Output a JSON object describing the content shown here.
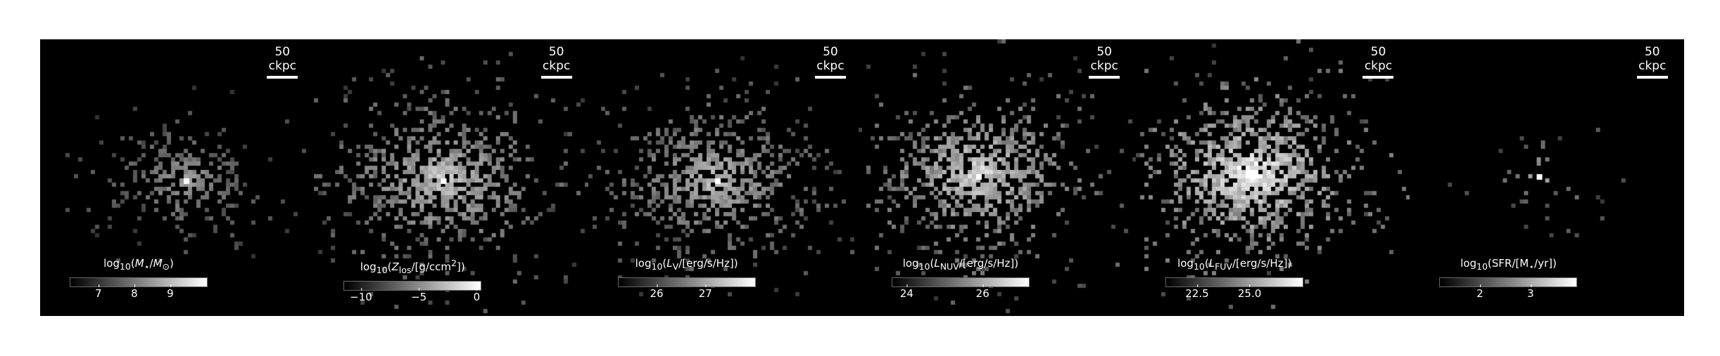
{
  "panels": [
    {
      "scale_label": "50 ckpc",
      "colorbar_html": "log<sub>10</sub>(<i>M</i><sub>⋆</sub>/<i>M</i><sub>⊙</sub>)",
      "colorbar_text": "log10(M⋆/M⊙)",
      "range": [
        6.2,
        10.0
      ],
      "ticks": [
        {
          "label": "7",
          "value": 7
        },
        {
          "label": "8",
          "value": 8
        },
        {
          "label": "9",
          "value": 9
        }
      ]
    },
    {
      "scale_label": "50 ckpc",
      "colorbar_html": "log<sub>10</sub>(<i>Z</i><sub>los</sub>/[g/ccm<sup>2</sup>])",
      "colorbar_text": "log10(Zlos/[g/ccm2])",
      "range": [
        -11.5,
        0.3
      ],
      "ticks": [
        {
          "label": "−10",
          "value": -10
        },
        {
          "label": "−5",
          "value": -5
        },
        {
          "label": "0",
          "value": 0
        }
      ]
    },
    {
      "scale_label": "50 ckpc",
      "colorbar_html": "log<sub>10</sub>(<i>L</i><sub>V</sub>/[erg/s/Hz])",
      "colorbar_text": "log10(LV/[erg/s/Hz])",
      "range": [
        25.2,
        28.0
      ],
      "ticks": [
        {
          "label": "26",
          "value": 26
        },
        {
          "label": "27",
          "value": 27
        }
      ]
    },
    {
      "scale_label": "50 ckpc",
      "colorbar_html": "log<sub>10</sub>(<i>L</i><sub>NUV</sub>/[erg/s/Hz])",
      "colorbar_text": "log10(LNUV/[erg/s/Hz])",
      "range": [
        23.6,
        27.2
      ],
      "ticks": [
        {
          "label": "24",
          "value": 24
        },
        {
          "label": "26",
          "value": 26
        }
      ]
    },
    {
      "scale_label": "50 ckpc",
      "colorbar_html": "log<sub>10</sub>(<i>L</i><sub>FUV</sub>/[erg/s/Hz])",
      "colorbar_text": "log10(LFUV/[erg/s/Hz])",
      "range": [
        21.0,
        27.5
      ],
      "ticks": [
        {
          "label": "22.5",
          "value": 22.5
        },
        {
          "label": "25.0",
          "value": 25.0
        }
      ]
    },
    {
      "scale_label": "50 ckpc",
      "colorbar_html": "log<sub>10</sub>(SFR/[M<sub>⋆</sub>/yr])",
      "colorbar_text": "log10(SFR/[M⋆/yr])",
      "range": [
        1.2,
        3.9
      ],
      "ticks": [
        {
          "label": "2",
          "value": 2
        },
        {
          "label": "3",
          "value": 3
        }
      ]
    }
  ]
}
